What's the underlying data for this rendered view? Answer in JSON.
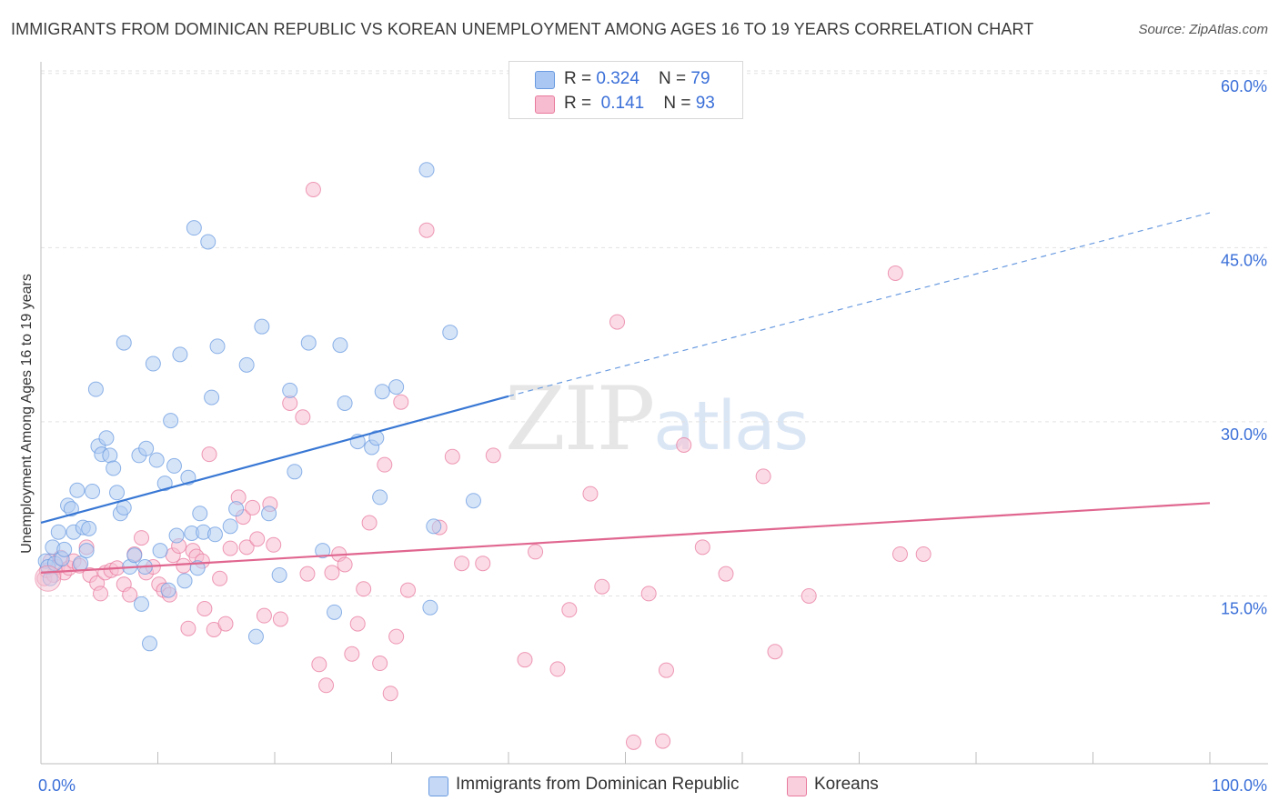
{
  "title": "IMMIGRANTS FROM DOMINICAN REPUBLIC VS KOREAN UNEMPLOYMENT AMONG AGES 16 TO 19 YEARS CORRELATION CHART",
  "source": "Source: ZipAtlas.com",
  "watermark": {
    "zip": "ZIP",
    "atlas": "atlas"
  },
  "legend": {
    "r_label": "R = ",
    "n_label": "N = ",
    "rows": [
      {
        "r": "0.324",
        "n": "79",
        "color": "#aac6f2"
      },
      {
        "r": " 0.141",
        "n": "93",
        "color": "#f7bcd0"
      }
    ]
  },
  "chart_data": {
    "type": "scatter",
    "title": "IMMIGRANTS FROM DOMINICAN REPUBLIC VS KOREAN UNEMPLOYMENT AMONG AGES 16 TO 19 YEARS CORRELATION CHART",
    "xlabel": "",
    "ylabel": "Unemployment Among Ages 16 to 19 years",
    "xlim": [
      0,
      100
    ],
    "ylim": [
      0,
      63
    ],
    "x_tick_labels": [
      "0.0%",
      "100.0%"
    ],
    "y_ticks": [
      15,
      30,
      45,
      60
    ],
    "y_tick_labels": [
      "15.0%",
      "30.0%",
      "45.0%",
      "60.0%"
    ],
    "grid": true,
    "legend_position": "top-center",
    "series": [
      {
        "name": "Immigrants from Dominican Republic",
        "color": "#6a9be0",
        "fill": "#b4cdf3",
        "R": 0.324,
        "N": 79,
        "trend": {
          "x0": 0.0,
          "y0": 21.3,
          "x1": 40.0,
          "y1": 32.2,
          "dash_to_x": 100.0,
          "dash_to_y": 48.0
        },
        "points": [
          [
            0.4,
            18.0
          ],
          [
            0.6,
            17.5
          ],
          [
            0.8,
            16.5
          ],
          [
            1.0,
            19.2
          ],
          [
            1.2,
            17.8
          ],
          [
            1.5,
            20.5
          ],
          [
            1.8,
            18.2
          ],
          [
            2.0,
            19.0
          ],
          [
            2.3,
            22.8
          ],
          [
            2.6,
            22.5
          ],
          [
            2.8,
            20.5
          ],
          [
            3.1,
            24.1
          ],
          [
            3.4,
            17.8
          ],
          [
            3.6,
            20.9
          ],
          [
            3.9,
            18.9
          ],
          [
            4.1,
            20.8
          ],
          [
            4.4,
            24.0
          ],
          [
            4.7,
            32.8
          ],
          [
            4.9,
            27.9
          ],
          [
            5.2,
            27.2
          ],
          [
            5.6,
            28.6
          ],
          [
            5.9,
            27.1
          ],
          [
            6.2,
            26.0
          ],
          [
            6.5,
            23.9
          ],
          [
            6.8,
            22.1
          ],
          [
            7.1,
            22.6
          ],
          [
            7.1,
            36.8
          ],
          [
            7.6,
            17.5
          ],
          [
            8.0,
            18.5
          ],
          [
            8.4,
            27.1
          ],
          [
            8.6,
            14.3
          ],
          [
            8.9,
            17.5
          ],
          [
            9.0,
            27.7
          ],
          [
            9.3,
            10.9
          ],
          [
            9.6,
            35.0
          ],
          [
            9.9,
            26.7
          ],
          [
            10.2,
            18.9
          ],
          [
            10.6,
            24.7
          ],
          [
            10.9,
            15.5
          ],
          [
            11.1,
            30.1
          ],
          [
            11.4,
            26.2
          ],
          [
            11.6,
            20.2
          ],
          [
            11.9,
            35.8
          ],
          [
            12.3,
            16.3
          ],
          [
            12.6,
            25.2
          ],
          [
            12.9,
            20.4
          ],
          [
            13.1,
            46.7
          ],
          [
            13.4,
            17.4
          ],
          [
            13.6,
            22.1
          ],
          [
            13.9,
            20.5
          ],
          [
            14.3,
            45.5
          ],
          [
            14.6,
            32.1
          ],
          [
            14.9,
            20.3
          ],
          [
            15.1,
            36.5
          ],
          [
            16.2,
            21.0
          ],
          [
            16.7,
            22.5
          ],
          [
            17.6,
            34.9
          ],
          [
            18.4,
            11.5
          ],
          [
            18.9,
            38.2
          ],
          [
            19.5,
            22.1
          ],
          [
            20.4,
            16.8
          ],
          [
            21.3,
            32.7
          ],
          [
            21.7,
            25.7
          ],
          [
            22.9,
            36.8
          ],
          [
            24.1,
            18.9
          ],
          [
            25.1,
            13.6
          ],
          [
            25.6,
            36.6
          ],
          [
            26.0,
            31.6
          ],
          [
            27.1,
            28.3
          ],
          [
            28.3,
            27.8
          ],
          [
            28.7,
            28.6
          ],
          [
            29.0,
            23.5
          ],
          [
            29.2,
            32.6
          ],
          [
            30.4,
            33.0
          ],
          [
            33.0,
            51.7
          ],
          [
            33.3,
            14.0
          ],
          [
            33.6,
            21.0
          ],
          [
            35.0,
            37.7
          ],
          [
            37.0,
            23.2
          ]
        ]
      },
      {
        "name": "Koreans",
        "color": "#e87a9d",
        "fill": "#f8c0d2",
        "R": 0.141,
        "N": 93,
        "trend": {
          "x0": 0.0,
          "y0": 17.0,
          "x1": 100.0,
          "y1": 23.0
        },
        "points": [
          [
            0.3,
            16.5
          ],
          [
            0.5,
            17.2
          ],
          [
            0.8,
            18.0
          ],
          [
            1.1,
            16.8
          ],
          [
            1.4,
            17.5
          ],
          [
            1.7,
            18.3
          ],
          [
            2.0,
            17.0
          ],
          [
            2.4,
            17.4
          ],
          [
            2.8,
            18.0
          ],
          [
            3.3,
            17.6
          ],
          [
            3.9,
            19.2
          ],
          [
            4.2,
            16.8
          ],
          [
            4.8,
            16.1
          ],
          [
            5.1,
            15.2
          ],
          [
            5.5,
            17.0
          ],
          [
            6.0,
            17.2
          ],
          [
            6.5,
            17.4
          ],
          [
            7.1,
            16.0
          ],
          [
            7.6,
            15.1
          ],
          [
            8.0,
            18.6
          ],
          [
            8.6,
            20.0
          ],
          [
            9.0,
            17.0
          ],
          [
            9.6,
            17.5
          ],
          [
            10.1,
            16.0
          ],
          [
            10.5,
            15.5
          ],
          [
            11.0,
            15.1
          ],
          [
            11.3,
            18.5
          ],
          [
            11.8,
            19.3
          ],
          [
            12.2,
            17.6
          ],
          [
            12.6,
            12.2
          ],
          [
            13.0,
            18.9
          ],
          [
            13.3,
            18.4
          ],
          [
            13.8,
            18.0
          ],
          [
            14.0,
            13.9
          ],
          [
            14.4,
            27.2
          ],
          [
            14.8,
            12.1
          ],
          [
            15.3,
            16.5
          ],
          [
            15.8,
            12.6
          ],
          [
            16.2,
            19.1
          ],
          [
            16.9,
            23.5
          ],
          [
            17.3,
            21.8
          ],
          [
            17.6,
            19.2
          ],
          [
            18.1,
            22.6
          ],
          [
            18.5,
            19.9
          ],
          [
            19.1,
            13.3
          ],
          [
            19.6,
            22.9
          ],
          [
            19.9,
            19.4
          ],
          [
            20.5,
            13.0
          ],
          [
            21.3,
            31.6
          ],
          [
            22.4,
            30.4
          ],
          [
            22.8,
            16.9
          ],
          [
            23.3,
            50.0
          ],
          [
            23.8,
            9.1
          ],
          [
            24.4,
            7.3
          ],
          [
            24.9,
            17.0
          ],
          [
            25.5,
            18.6
          ],
          [
            26.0,
            17.7
          ],
          [
            26.6,
            10.0
          ],
          [
            27.1,
            12.6
          ],
          [
            27.6,
            15.6
          ],
          [
            28.1,
            21.3
          ],
          [
            29.0,
            9.2
          ],
          [
            29.4,
            26.3
          ],
          [
            29.9,
            6.6
          ],
          [
            30.4,
            11.5
          ],
          [
            30.8,
            31.7
          ],
          [
            31.4,
            15.5
          ],
          [
            33.0,
            46.5
          ],
          [
            35.2,
            27.0
          ],
          [
            37.8,
            17.8
          ],
          [
            41.4,
            9.5
          ],
          [
            42.3,
            18.8
          ],
          [
            45.2,
            13.8
          ],
          [
            47.0,
            23.8
          ],
          [
            48.0,
            15.8
          ],
          [
            49.3,
            38.6
          ],
          [
            50.7,
            2.4
          ],
          [
            52.0,
            15.2
          ],
          [
            53.2,
            2.5
          ],
          [
            53.5,
            8.6
          ],
          [
            55.0,
            28.0
          ],
          [
            56.6,
            19.2
          ],
          [
            58.6,
            16.9
          ],
          [
            61.8,
            25.3
          ],
          [
            62.8,
            10.2
          ],
          [
            65.7,
            15.0
          ],
          [
            73.1,
            42.8
          ],
          [
            73.5,
            18.6
          ],
          [
            75.5,
            18.6
          ],
          [
            38.7,
            27.1
          ],
          [
            36.0,
            17.8
          ],
          [
            34.1,
            20.9
          ],
          [
            44.2,
            8.7
          ]
        ]
      }
    ]
  }
}
